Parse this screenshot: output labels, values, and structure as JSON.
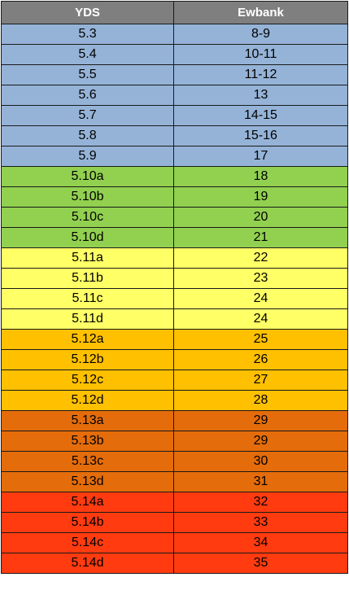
{
  "header": {
    "col1": "YDS",
    "col2": "Ewbank"
  },
  "colors": {
    "header_bg": "#7f7f7f",
    "blue": "#95b3d7",
    "green": "#92d050",
    "yellow": "#ffff66",
    "amber": "#ffc000",
    "orange": "#e46c0a",
    "red": "#ff3b0f"
  },
  "rows": [
    {
      "yds": "5.3",
      "ewbank": "8-9",
      "band": "blue"
    },
    {
      "yds": "5.4",
      "ewbank": "10-11",
      "band": "blue"
    },
    {
      "yds": "5.5",
      "ewbank": "11-12",
      "band": "blue"
    },
    {
      "yds": "5.6",
      "ewbank": "13",
      "band": "blue"
    },
    {
      "yds": "5.7",
      "ewbank": "14-15",
      "band": "blue"
    },
    {
      "yds": "5.8",
      "ewbank": "15-16",
      "band": "blue"
    },
    {
      "yds": "5.9",
      "ewbank": "17",
      "band": "blue"
    },
    {
      "yds": "5.10a",
      "ewbank": "18",
      "band": "green"
    },
    {
      "yds": "5.10b",
      "ewbank": "19",
      "band": "green"
    },
    {
      "yds": "5.10c",
      "ewbank": "20",
      "band": "green"
    },
    {
      "yds": "5.10d",
      "ewbank": "21",
      "band": "green"
    },
    {
      "yds": "5.11a",
      "ewbank": "22",
      "band": "yellow"
    },
    {
      "yds": "5.11b",
      "ewbank": "23",
      "band": "yellow"
    },
    {
      "yds": "5.11c",
      "ewbank": "24",
      "band": "yellow"
    },
    {
      "yds": "5.11d",
      "ewbank": "24",
      "band": "yellow"
    },
    {
      "yds": "5.12a",
      "ewbank": "25",
      "band": "amber"
    },
    {
      "yds": "5.12b",
      "ewbank": "26",
      "band": "amber"
    },
    {
      "yds": "5.12c",
      "ewbank": "27",
      "band": "amber"
    },
    {
      "yds": "5.12d",
      "ewbank": "28",
      "band": "amber"
    },
    {
      "yds": "5.13a",
      "ewbank": "29",
      "band": "orange"
    },
    {
      "yds": "5.13b",
      "ewbank": "29",
      "band": "orange"
    },
    {
      "yds": "5.13c",
      "ewbank": "30",
      "band": "orange"
    },
    {
      "yds": "5.13d",
      "ewbank": "31",
      "band": "orange"
    },
    {
      "yds": "5.14a",
      "ewbank": "32",
      "band": "red"
    },
    {
      "yds": "5.14b",
      "ewbank": "33",
      "band": "red"
    },
    {
      "yds": "5.14c",
      "ewbank": "34",
      "band": "red"
    },
    {
      "yds": "5.14d",
      "ewbank": "35",
      "band": "red"
    }
  ]
}
